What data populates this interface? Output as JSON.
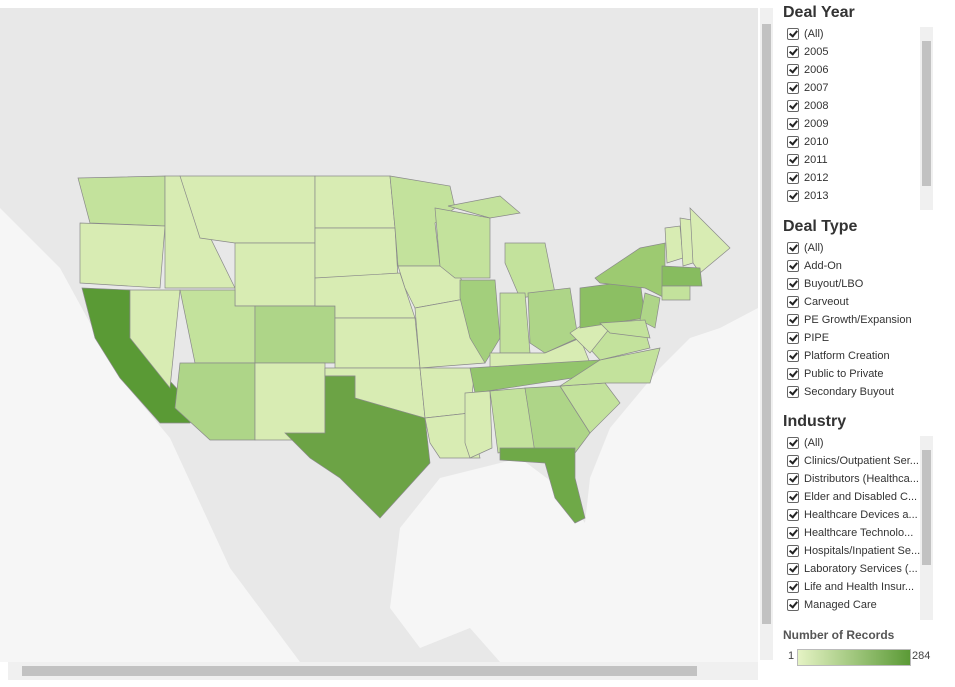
{
  "filters": [
    {
      "title": "Deal Year",
      "items": [
        "(All)",
        "2005",
        "2006",
        "2007",
        "2008",
        "2009",
        "2010",
        "2011",
        "2012",
        "2013"
      ]
    },
    {
      "title": "Deal Type",
      "items": [
        "(All)",
        "Add-On",
        "Buyout/LBO",
        "Carveout",
        "PE Growth/Expansion",
        "PIPE",
        "Platform Creation",
        "Public to Private",
        "Secondary Buyout"
      ]
    },
    {
      "title": "Industry",
      "items": [
        "(All)",
        "Clinics/Outpatient Ser...",
        "Distributors (Healthca...",
        "Elder and Disabled C...",
        "Healthcare Devices a...",
        "Healthcare Technolo...",
        "Hospitals/Inpatient Se...",
        "Laboratory Services (...",
        "Life and Health Insur...",
        "Managed Care"
      ]
    }
  ],
  "legend": {
    "title": "Number of Records",
    "min": "1",
    "max": "284"
  }
}
